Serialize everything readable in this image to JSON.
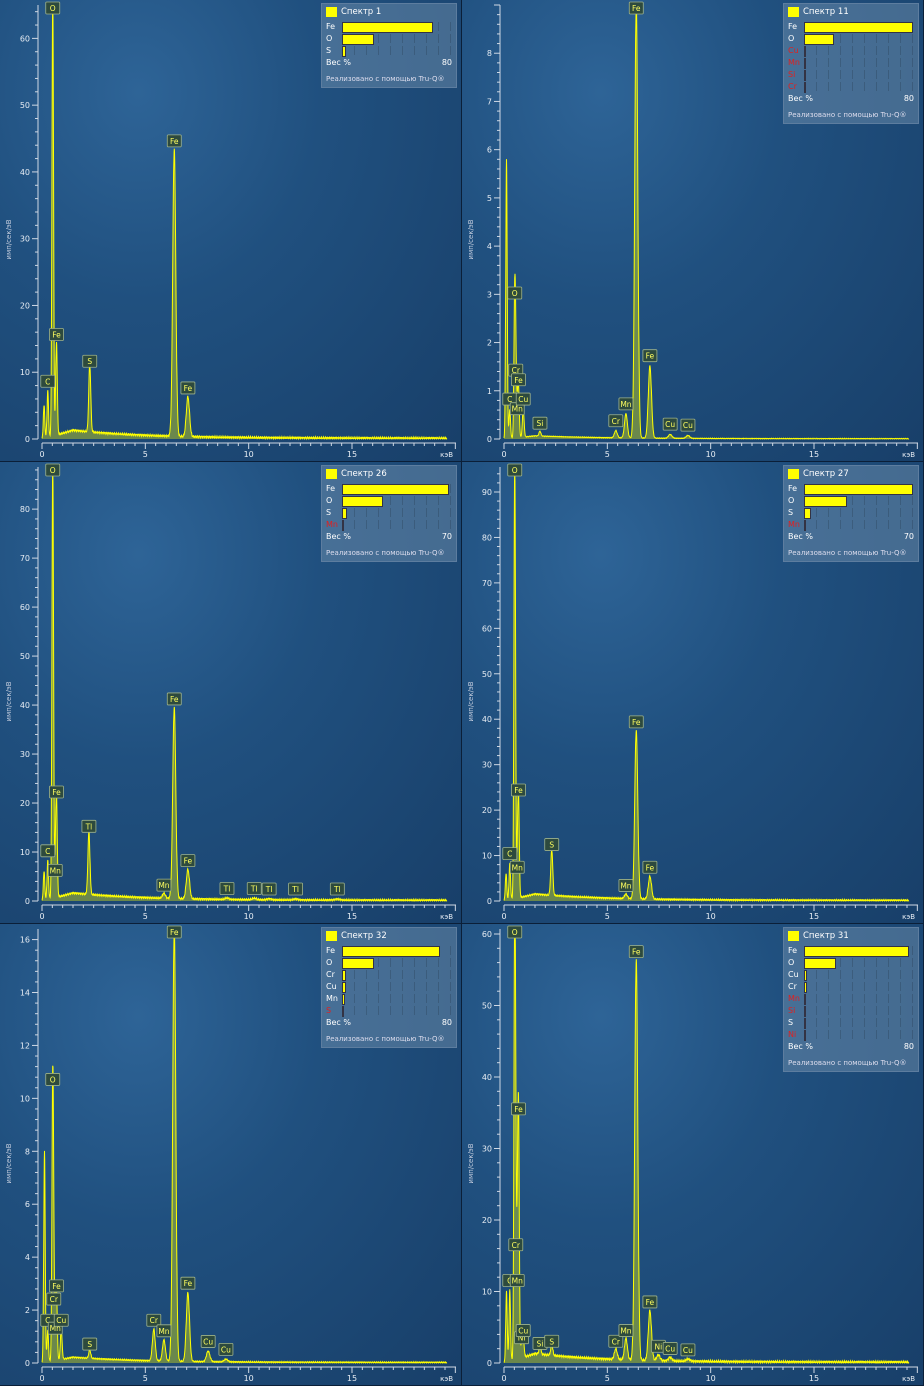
{
  "ylabel": "имп/сек/эВ",
  "xunit": "кэВ",
  "footer": "Реализовано с помощью Tru-Q®",
  "colors": {
    "spectrum": "#ffff00",
    "legend_absent": "#e02020"
  },
  "chart_data": [
    {
      "type": "line",
      "title": "Спектр 1",
      "xlim": [
        0,
        20
      ],
      "ylim": [
        0,
        65
      ],
      "yticks": [
        0,
        10,
        20,
        30,
        40,
        50,
        60
      ],
      "xticks": [
        0,
        5,
        10,
        15
      ],
      "legend": {
        "scale_max": 80,
        "axis_label": "Вес %",
        "items": [
          {
            "el": "Fe",
            "wt": 65,
            "present": true
          },
          {
            "el": "O",
            "wt": 22,
            "present": true
          },
          {
            "el": "S",
            "wt": 1.5,
            "present": true
          }
        ]
      },
      "background": 1.2,
      "peaks": [
        {
          "label": "",
          "kev": 0.1,
          "counts": 5
        },
        {
          "label": "C",
          "kev": 0.28,
          "counts": 7
        },
        {
          "label": "O",
          "kev": 0.52,
          "counts": 65
        },
        {
          "label": "Fe",
          "kev": 0.7,
          "counts": 14
        },
        {
          "label": "S",
          "kev": 2.31,
          "counts": 10
        },
        {
          "label": "Fe",
          "kev": 6.4,
          "counts": 43
        },
        {
          "label": "Fe",
          "kev": 7.06,
          "counts": 6
        }
      ]
    },
    {
      "type": "line",
      "title": "Спектр 11",
      "xlim": [
        0,
        20
      ],
      "ylim": [
        0,
        9
      ],
      "yticks": [
        0,
        1,
        2,
        3,
        4,
        5,
        6,
        7,
        8
      ],
      "xticks": [
        0,
        5,
        10,
        15
      ],
      "legend": {
        "scale_max": 80,
        "axis_label": "Вес %",
        "items": [
          {
            "el": "Fe",
            "wt": 78,
            "present": true
          },
          {
            "el": "O",
            "wt": 20,
            "present": true
          },
          {
            "el": "Cu",
            "wt": 0.3,
            "present": false
          },
          {
            "el": "Mn",
            "wt": 0.3,
            "present": false
          },
          {
            "el": "Si",
            "wt": 0.2,
            "present": false
          },
          {
            "el": "Cr",
            "wt": 0.2,
            "present": false
          }
        ]
      },
      "background": 0.06,
      "peaks": [
        {
          "label": "",
          "kev": 0.12,
          "counts": 5.8
        },
        {
          "label": "C",
          "kev": 0.28,
          "counts": 0.6
        },
        {
          "label": "O",
          "kev": 0.52,
          "counts": 2.8
        },
        {
          "label": "Cr",
          "kev": 0.57,
          "counts": 1.2
        },
        {
          "label": "Mn",
          "kev": 0.64,
          "counts": 0.4
        },
        {
          "label": "Fe",
          "kev": 0.7,
          "counts": 1.0
        },
        {
          "label": "Cu",
          "kev": 0.93,
          "counts": 0.6
        },
        {
          "label": "Si",
          "kev": 1.74,
          "counts": 0.1
        },
        {
          "label": "Cr",
          "kev": 5.41,
          "counts": 0.15
        },
        {
          "label": "Mn",
          "kev": 5.9,
          "counts": 0.5
        },
        {
          "label": "Fe",
          "kev": 6.4,
          "counts": 9
        },
        {
          "label": "Fe",
          "kev": 7.06,
          "counts": 1.5
        },
        {
          "label": "Cu",
          "kev": 8.04,
          "counts": 0.08
        },
        {
          "label": "Cu",
          "kev": 8.9,
          "counts": 0.06
        }
      ]
    },
    {
      "type": "line",
      "title": "Спектр 26",
      "xlim": [
        0,
        20
      ],
      "ylim": [
        0,
        88.6
      ],
      "yticks": [
        0,
        10,
        20,
        30,
        40,
        50,
        60,
        70,
        80
      ],
      "xticks": [
        0,
        5,
        10,
        15
      ],
      "legend": {
        "scale_max": 70,
        "axis_label": "Вес %",
        "items": [
          {
            "el": "Fe",
            "wt": 67,
            "present": true
          },
          {
            "el": "O",
            "wt": 25,
            "present": true
          },
          {
            "el": "S",
            "wt": 2,
            "present": true
          },
          {
            "el": "Mn",
            "wt": 0.3,
            "present": false
          }
        ]
      },
      "background": 1.5,
      "peaks": [
        {
          "label": "",
          "kev": 0.1,
          "counts": 6
        },
        {
          "label": "C",
          "kev": 0.28,
          "counts": 8
        },
        {
          "label": "O",
          "kev": 0.52,
          "counts": 88
        },
        {
          "label": "Mn",
          "kev": 0.64,
          "counts": 4
        },
        {
          "label": "Fe",
          "kev": 0.7,
          "counts": 20
        },
        {
          "label": "Tl",
          "kev": 2.27,
          "counts": 13
        },
        {
          "label": "Mn",
          "kev": 5.9,
          "counts": 1
        },
        {
          "label": "Fe",
          "kev": 6.4,
          "counts": 39
        },
        {
          "label": "Fe",
          "kev": 7.06,
          "counts": 6
        },
        {
          "label": "Tl",
          "kev": 8.95,
          "counts": 0.3
        },
        {
          "label": "Tl",
          "kev": 10.27,
          "counts": 0.3
        },
        {
          "label": "Tl",
          "kev": 10.99,
          "counts": 0.2
        },
        {
          "label": "Tl",
          "kev": 12.27,
          "counts": 0.2
        },
        {
          "label": "Tl",
          "kev": 14.29,
          "counts": 0.2
        }
      ]
    },
    {
      "type": "line",
      "title": "Спектр 27",
      "xlim": [
        0,
        20
      ],
      "ylim": [
        0,
        95.5
      ],
      "yticks": [
        0,
        10,
        20,
        30,
        40,
        50,
        60,
        70,
        80,
        90
      ],
      "xticks": [
        0,
        5,
        10,
        15
      ],
      "legend": {
        "scale_max": 70,
        "axis_label": "Вес %",
        "items": [
          {
            "el": "Fe",
            "wt": 68,
            "present": true
          },
          {
            "el": "O",
            "wt": 26,
            "present": true
          },
          {
            "el": "S",
            "wt": 3,
            "present": true
          },
          {
            "el": "Mn",
            "wt": 0.3,
            "present": false
          }
        ]
      },
      "background": 1.4,
      "peaks": [
        {
          "label": "",
          "kev": 0.1,
          "counts": 6
        },
        {
          "label": "C",
          "kev": 0.28,
          "counts": 8
        },
        {
          "label": "O",
          "kev": 0.52,
          "counts": 95
        },
        {
          "label": "Mn",
          "kev": 0.64,
          "counts": 5
        },
        {
          "label": "Fe",
          "kev": 0.7,
          "counts": 22
        },
        {
          "label": "S",
          "kev": 2.31,
          "counts": 10
        },
        {
          "label": "Mn",
          "kev": 5.9,
          "counts": 1
        },
        {
          "label": "Fe",
          "kev": 6.4,
          "counts": 37
        },
        {
          "label": "Fe",
          "kev": 7.06,
          "counts": 5
        }
      ]
    },
    {
      "type": "line",
      "title": "Спектр 32",
      "xlim": [
        0,
        20
      ],
      "ylim": [
        0,
        16.4
      ],
      "yticks": [
        0,
        2,
        4,
        6,
        8,
        10,
        12,
        14,
        16
      ],
      "xticks": [
        0,
        5,
        10,
        15
      ],
      "legend": {
        "scale_max": 80,
        "axis_label": "Вес %",
        "items": [
          {
            "el": "Fe",
            "wt": 70,
            "present": true
          },
          {
            "el": "O",
            "wt": 22,
            "present": true
          },
          {
            "el": "Cr",
            "wt": 1.5,
            "present": true
          },
          {
            "el": "Cu",
            "wt": 1.5,
            "present": true
          },
          {
            "el": "Mn",
            "wt": 1,
            "present": true
          },
          {
            "el": "S",
            "wt": 0.2,
            "present": false
          }
        ]
      },
      "background": 0.2,
      "peaks": [
        {
          "label": "",
          "kev": 0.12,
          "counts": 8
        },
        {
          "label": "C",
          "kev": 0.28,
          "counts": 1.2
        },
        {
          "label": "O",
          "kev": 0.52,
          "counts": 10.3
        },
        {
          "label": "Cr",
          "kev": 0.57,
          "counts": 2
        },
        {
          "label": "Mn",
          "kev": 0.64,
          "counts": 0.9
        },
        {
          "label": "Fe",
          "kev": 0.7,
          "counts": 2.5
        },
        {
          "label": "Cu",
          "kev": 0.93,
          "counts": 1.2
        },
        {
          "label": "S",
          "kev": 2.31,
          "counts": 0.3
        },
        {
          "label": "Cr",
          "kev": 5.41,
          "counts": 1.2
        },
        {
          "label": "Mn",
          "kev": 5.9,
          "counts": 0.8
        },
        {
          "label": "Fe",
          "kev": 6.4,
          "counts": 16.4
        },
        {
          "label": "Fe",
          "kev": 7.06,
          "counts": 2.6
        },
        {
          "label": "Cu",
          "kev": 8.04,
          "counts": 0.4
        },
        {
          "label": "Cu",
          "kev": 8.9,
          "counts": 0.1
        }
      ]
    },
    {
      "type": "line",
      "title": "Спектр 31",
      "xlim": [
        0,
        20
      ],
      "ylim": [
        0,
        60.7
      ],
      "yticks": [
        0,
        10,
        20,
        30,
        40,
        50,
        60
      ],
      "xticks": [
        0,
        5,
        10,
        15
      ],
      "legend": {
        "scale_max": 80,
        "axis_label": "Вес %",
        "items": [
          {
            "el": "Fe",
            "wt": 75,
            "present": true
          },
          {
            "el": "O",
            "wt": 22,
            "present": true
          },
          {
            "el": "Cu",
            "wt": 1,
            "present": true
          },
          {
            "el": "Cr",
            "wt": 1,
            "present": true
          },
          {
            "el": "Mn",
            "wt": 0.3,
            "present": false
          },
          {
            "el": "Si",
            "wt": 0.3,
            "present": false
          },
          {
            "el": "S",
            "wt": 0.3,
            "present": true
          },
          {
            "el": "Ni",
            "wt": 0.2,
            "present": false
          }
        ]
      },
      "background": 1.2,
      "peaks": [
        {
          "label": "",
          "kev": 0.12,
          "counts": 10
        },
        {
          "label": "C",
          "kev": 0.28,
          "counts": 10
        },
        {
          "label": "O",
          "kev": 0.52,
          "counts": 60
        },
        {
          "label": "Cr",
          "kev": 0.57,
          "counts": 15
        },
        {
          "label": "Mn",
          "kev": 0.64,
          "counts": 10
        },
        {
          "label": "Fe",
          "kev": 0.7,
          "counts": 34
        },
        {
          "label": "Ni",
          "kev": 0.85,
          "counts": 2
        },
        {
          "label": "Cu",
          "kev": 0.93,
          "counts": 3
        },
        {
          "label": "Si",
          "kev": 1.74,
          "counts": 1.2
        },
        {
          "label": "S",
          "kev": 2.31,
          "counts": 1.5
        },
        {
          "label": "Cr",
          "kev": 5.41,
          "counts": 1.5
        },
        {
          "label": "Mn",
          "kev": 5.9,
          "counts": 3
        },
        {
          "label": "Fe",
          "kev": 6.4,
          "counts": 56
        },
        {
          "label": "Fe",
          "kev": 7.06,
          "counts": 7
        },
        {
          "label": "Ni",
          "kev": 7.47,
          "counts": 0.8
        },
        {
          "label": "Cu",
          "kev": 8.04,
          "counts": 0.5
        },
        {
          "label": "Cu",
          "kev": 8.9,
          "counts": 0.3
        }
      ]
    }
  ]
}
